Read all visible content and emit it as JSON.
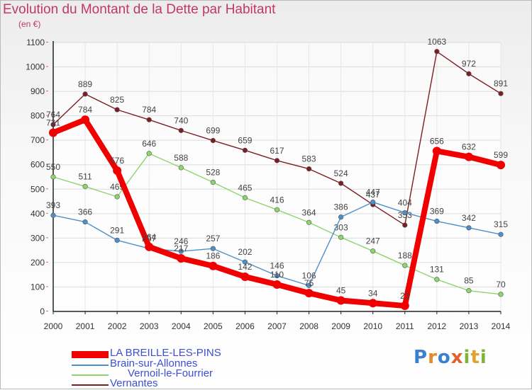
{
  "title": "Evolution du Montant de la Dette par Habitant",
  "subtitle": "(en €)",
  "logo_text": "Proxiti",
  "chart_data": {
    "type": "line",
    "x": [
      "2000",
      "2001",
      "2002",
      "2003",
      "2004",
      "2005",
      "2006",
      "2007",
      "2008",
      "2009",
      "2010",
      "2011",
      "2012",
      "2013",
      "2014"
    ],
    "ylim": [
      0,
      1100
    ],
    "yticks": [
      0,
      100,
      200,
      300,
      400,
      500,
      600,
      700,
      800,
      900,
      1000,
      1100
    ],
    "grid": true,
    "legend_position": "bottom-left",
    "series": [
      {
        "name": "Vernantes",
        "color": "#7b1e24",
        "values": [
          764,
          889,
          825,
          784,
          740,
          699,
          659,
          617,
          583,
          524,
          437,
          353,
          1063,
          972,
          891
        ],
        "labels": [
          "764",
          "889",
          "825",
          "784",
          "740",
          "699",
          "659",
          "617",
          "583",
          "524",
          "437",
          "353",
          "1063",
          "972",
          "891"
        ]
      },
      {
        "name": "Vernoil-le-Fourrier",
        "display_name": "      Vernoil-le-Fourrier",
        "color": "#8fd46c",
        "values": [
          550,
          511,
          469,
          646,
          588,
          528,
          465,
          416,
          364,
          303,
          247,
          188,
          131,
          85,
          70
        ],
        "labels": [
          "550",
          "511",
          "469",
          "646",
          "588",
          "528",
          "465",
          "416",
          "364",
          "303",
          "247",
          "188",
          "131",
          "85",
          "70"
        ]
      },
      {
        "name": "Brain-sur-Allonnes",
        "color": "#4f8fc9",
        "values": [
          393,
          366,
          291,
          257,
          246,
          257,
          202,
          146,
          106,
          386,
          447,
          404,
          369,
          342,
          315
        ],
        "labels": [
          "393",
          "366",
          "291",
          "257",
          "246",
          "257",
          "202",
          "146",
          "106",
          "386",
          "447",
          "404",
          "369",
          "342",
          "315"
        ]
      },
      {
        "name": "LA BREILLE-LES-PINS",
        "color": "#f00000",
        "values": [
          731,
          784,
          576,
          264,
          217,
          186,
          142,
          110,
          75,
          45,
          34,
          23,
          656,
          632,
          599
        ],
        "labels": [
          "731",
          "784",
          "576",
          "264",
          "217",
          "186",
          "142",
          "110",
          "75",
          "45",
          "34",
          "23",
          "656",
          "632",
          "599"
        ]
      }
    ],
    "legend": [
      {
        "name": "LA BREILLE-LES-PINS",
        "color": "#f00000"
      },
      {
        "name": "Brain-sur-Allonnes",
        "color": "#4f8fc9"
      },
      {
        "name": "      Vernoil-le-Fourrier",
        "color": "#8fd46c"
      },
      {
        "name": "Vernantes",
        "color": "#7b1e24"
      }
    ]
  }
}
